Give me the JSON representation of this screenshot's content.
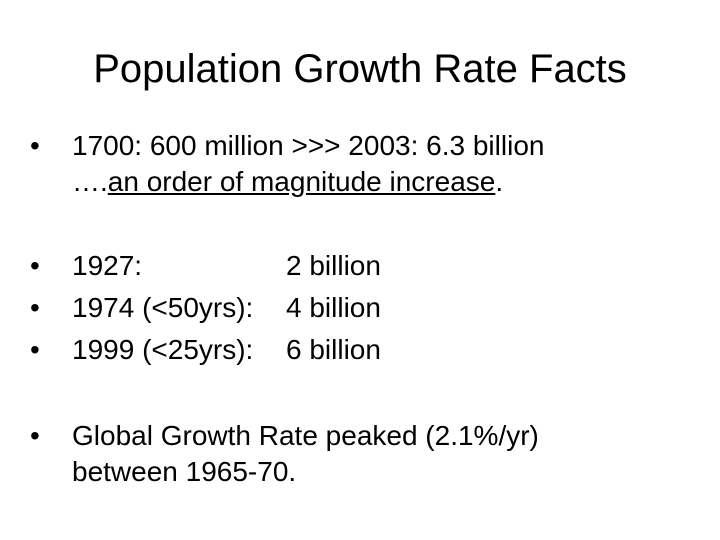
{
  "slide": {
    "title": "Population Growth Rate Facts",
    "bullet_glyph": "•",
    "item1": {
      "line1": "1700: 600 million >>> 2003: 6.3 billion",
      "line2_prefix": "….",
      "line2_underlined": "an order of magnitude increase",
      "line2_suffix": "."
    },
    "timeline": [
      {
        "label": "1927:",
        "value": "2 billion"
      },
      {
        "label": "1974 (<50yrs):",
        "value": "4 billion"
      },
      {
        "label": "1999 (<25yrs):",
        "value": "6 billion"
      }
    ],
    "item5": {
      "line1": "Global Growth Rate peaked (2.1%/yr)",
      "line2": "between 1965-70."
    }
  }
}
